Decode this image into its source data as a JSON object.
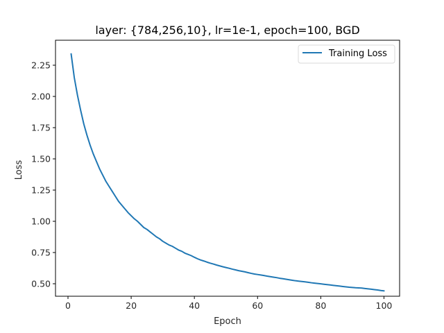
{
  "chart_data": {
    "type": "line",
    "title": "layer: {784,256,10}, lr=1e-1, epoch=100, BGD",
    "xlabel": "Epoch",
    "ylabel": "Loss",
    "xlim": [
      -3.95,
      104.95
    ],
    "ylim": [
      0.4,
      2.45
    ],
    "xticks": [
      0,
      20,
      40,
      60,
      80,
      100
    ],
    "xtick_labels": [
      "0",
      "20",
      "40",
      "60",
      "80",
      "100"
    ],
    "yticks": [
      0.5,
      0.75,
      1.0,
      1.25,
      1.5,
      1.75,
      2.0,
      2.25
    ],
    "ytick_labels": [
      "0.50",
      "0.75",
      "1.00",
      "1.25",
      "1.50",
      "1.75",
      "2.00",
      "2.25"
    ],
    "grid": false,
    "legend_position": "top-right",
    "series": [
      {
        "name": "Training Loss",
        "color": "#1f77b4",
        "x": [
          1,
          2,
          3,
          4,
          5,
          6,
          7,
          8,
          9,
          10,
          11,
          12,
          13,
          14,
          15,
          16,
          17,
          18,
          19,
          20,
          21,
          22,
          23,
          24,
          25,
          26,
          27,
          28,
          29,
          30,
          31,
          32,
          33,
          34,
          35,
          36,
          37,
          38,
          39,
          40,
          41,
          42,
          43,
          44,
          45,
          46,
          47,
          48,
          49,
          50,
          51,
          52,
          53,
          54,
          55,
          56,
          57,
          58,
          59,
          60,
          61,
          62,
          63,
          64,
          65,
          66,
          67,
          68,
          69,
          70,
          71,
          72,
          73,
          74,
          75,
          76,
          77,
          78,
          79,
          80,
          81,
          82,
          83,
          84,
          85,
          86,
          87,
          88,
          89,
          90,
          91,
          92,
          93,
          94,
          95,
          96,
          97,
          98,
          99,
          100
        ],
        "y": [
          2.34,
          2.15,
          2.01,
          1.89,
          1.78,
          1.69,
          1.61,
          1.54,
          1.48,
          1.42,
          1.37,
          1.32,
          1.28,
          1.24,
          1.2,
          1.16,
          1.13,
          1.1,
          1.07,
          1.045,
          1.02,
          1.0,
          0.975,
          0.95,
          0.935,
          0.915,
          0.895,
          0.875,
          0.86,
          0.84,
          0.825,
          0.81,
          0.8,
          0.785,
          0.77,
          0.76,
          0.745,
          0.735,
          0.725,
          0.712,
          0.7,
          0.69,
          0.682,
          0.673,
          0.665,
          0.658,
          0.65,
          0.643,
          0.636,
          0.63,
          0.624,
          0.617,
          0.611,
          0.605,
          0.6,
          0.595,
          0.589,
          0.583,
          0.578,
          0.574,
          0.57,
          0.566,
          0.561,
          0.557,
          0.553,
          0.549,
          0.544,
          0.54,
          0.536,
          0.532,
          0.528,
          0.524,
          0.521,
          0.518,
          0.515,
          0.512,
          0.508,
          0.505,
          0.502,
          0.499,
          0.496,
          0.493,
          0.49,
          0.487,
          0.484,
          0.481,
          0.478,
          0.475,
          0.472,
          0.47,
          0.468,
          0.467,
          0.465,
          0.462,
          0.459,
          0.456,
          0.453,
          0.45,
          0.446,
          0.443
        ]
      }
    ]
  }
}
